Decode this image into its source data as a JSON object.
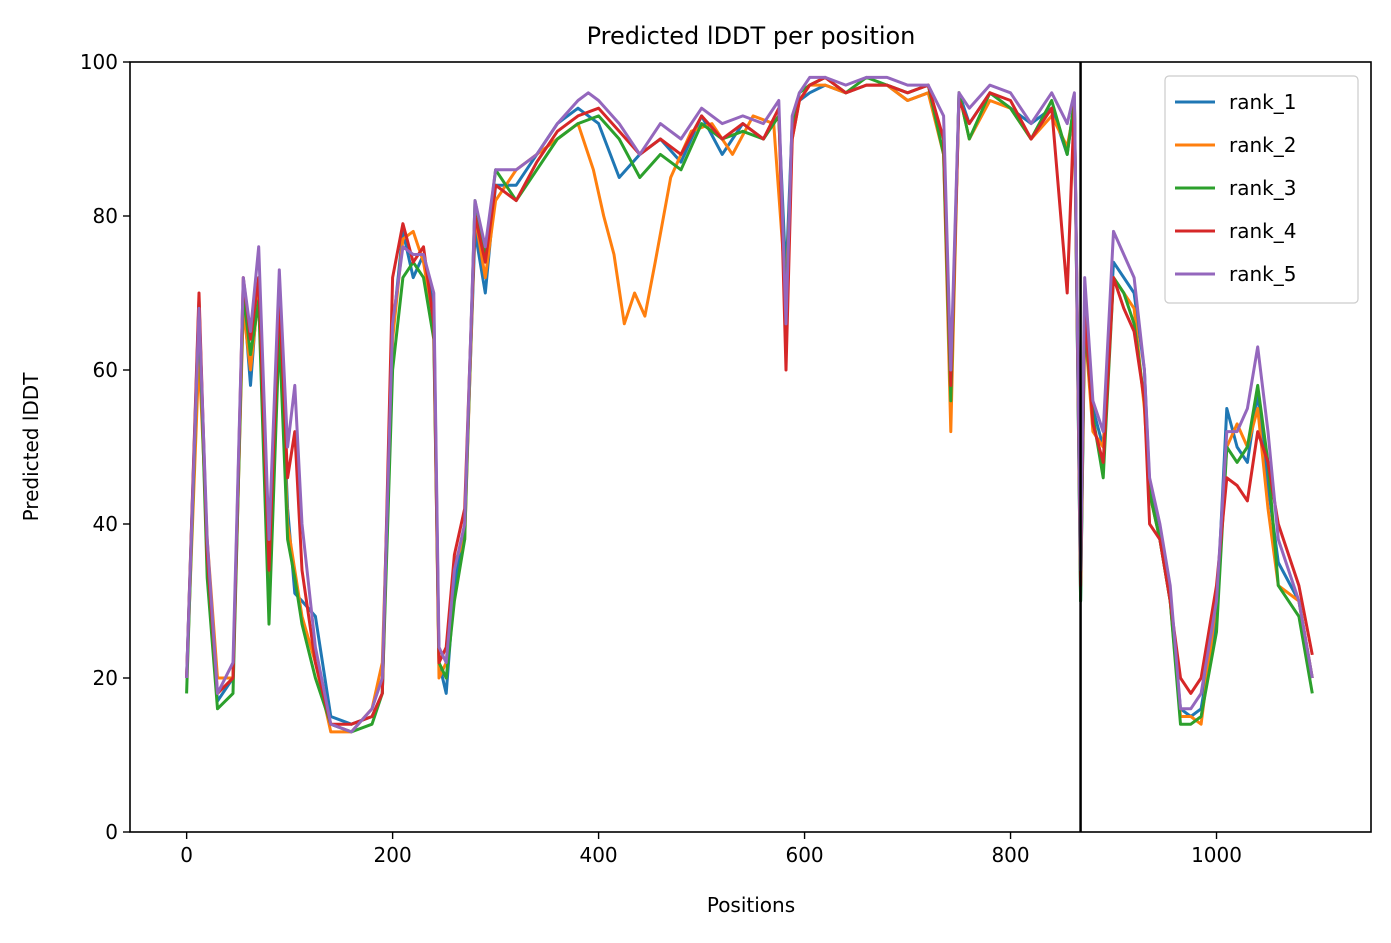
{
  "chart_data": {
    "type": "line",
    "title": "Predicted lDDT per position",
    "xlabel": "Positions",
    "ylabel": "Predicted lDDT",
    "xlim": [
      -55,
      1150
    ],
    "ylim": [
      0,
      100
    ],
    "xticks": [
      0,
      200,
      400,
      600,
      800,
      1000
    ],
    "yticks": [
      0,
      20,
      40,
      60,
      80,
      100
    ],
    "grid": false,
    "legend_position": "top-right",
    "vline": 868,
    "series": [
      {
        "name": "rank_1",
        "color": "#1f77b4",
        "x": [
          0,
          12,
          20,
          30,
          45,
          55,
          62,
          70,
          80,
          90,
          98,
          105,
          112,
          125,
          140,
          160,
          180,
          190,
          200,
          210,
          220,
          230,
          240,
          245,
          252,
          260,
          270,
          280,
          290,
          300,
          320,
          340,
          360,
          380,
          400,
          420,
          440,
          460,
          480,
          500,
          520,
          540,
          560,
          575,
          582,
          588,
          595,
          605,
          620,
          640,
          660,
          680,
          700,
          720,
          735,
          742,
          750,
          760,
          780,
          800,
          820,
          840,
          855,
          862,
          868,
          872,
          880,
          890,
          900,
          910,
          920,
          930,
          935,
          945,
          955,
          965,
          975,
          985,
          1000,
          1010,
          1020,
          1030,
          1040,
          1050,
          1060,
          1080,
          1093
        ],
        "y": [
          20,
          69,
          35,
          17,
          20,
          70,
          58,
          72,
          35,
          68,
          42,
          31,
          30,
          28,
          15,
          14,
          15,
          18,
          65,
          78,
          72,
          75,
          68,
          22,
          18,
          32,
          40,
          78,
          70,
          84,
          84,
          88,
          92,
          94,
          92,
          85,
          88,
          90,
          87,
          93,
          88,
          92,
          90,
          93,
          72,
          92,
          95,
          96,
          97,
          96,
          97,
          97,
          95,
          96,
          90,
          55,
          96,
          92,
          96,
          94,
          92,
          94,
          88,
          95,
          30,
          68,
          55,
          50,
          74,
          72,
          70,
          60,
          45,
          38,
          30,
          16,
          15,
          16,
          28,
          55,
          50,
          48,
          57,
          45,
          35,
          30,
          20
        ]
      },
      {
        "name": "rank_2",
        "color": "#ff7f0e",
        "x": [
          0,
          12,
          20,
          30,
          45,
          55,
          62,
          70,
          80,
          90,
          98,
          105,
          112,
          125,
          140,
          160,
          180,
          190,
          200,
          210,
          220,
          230,
          240,
          245,
          252,
          260,
          270,
          280,
          290,
          300,
          320,
          340,
          360,
          380,
          395,
          405,
          415,
          425,
          435,
          445,
          455,
          470,
          490,
          510,
          530,
          550,
          570,
          582,
          588,
          595,
          605,
          620,
          640,
          660,
          680,
          700,
          720,
          735,
          742,
          750,
          760,
          780,
          800,
          820,
          840,
          855,
          862,
          868,
          872,
          880,
          890,
          900,
          910,
          920,
          930,
          935,
          945,
          955,
          965,
          975,
          985,
          1000,
          1010,
          1020,
          1030,
          1040,
          1050,
          1060,
          1080,
          1093
        ],
        "y": [
          20,
          62,
          38,
          20,
          20,
          68,
          60,
          70,
          32,
          66,
          40,
          34,
          28,
          22,
          13,
          13,
          16,
          22,
          64,
          77,
          78,
          74,
          66,
          20,
          22,
          35,
          38,
          80,
          72,
          82,
          86,
          88,
          90,
          92,
          86,
          80,
          75,
          66,
          70,
          67,
          74,
          85,
          91,
          92,
          88,
          93,
          92,
          70,
          90,
          95,
          97,
          97,
          96,
          97,
          97,
          95,
          96,
          88,
          52,
          96,
          90,
          95,
          94,
          90,
          93,
          89,
          94,
          35,
          66,
          52,
          50,
          72,
          70,
          68,
          55,
          44,
          38,
          30,
          15,
          15,
          14,
          30,
          50,
          53,
          50,
          55,
          42,
          32,
          30,
          20
        ]
      },
      {
        "name": "rank_3",
        "color": "#2ca02c",
        "x": [
          0,
          12,
          20,
          30,
          45,
          55,
          62,
          70,
          80,
          90,
          98,
          105,
          112,
          125,
          140,
          160,
          180,
          190,
          200,
          210,
          220,
          230,
          240,
          245,
          252,
          260,
          270,
          280,
          290,
          300,
          320,
          340,
          360,
          380,
          400,
          420,
          440,
          460,
          480,
          500,
          520,
          540,
          560,
          575,
          582,
          588,
          595,
          605,
          620,
          640,
          660,
          680,
          700,
          720,
          735,
          742,
          750,
          760,
          780,
          800,
          820,
          840,
          855,
          862,
          868,
          872,
          880,
          890,
          900,
          910,
          920,
          930,
          935,
          945,
          955,
          965,
          975,
          985,
          1000,
          1010,
          1020,
          1030,
          1040,
          1050,
          1060,
          1080,
          1093
        ],
        "y": [
          18,
          68,
          33,
          16,
          18,
          70,
          62,
          69,
          27,
          65,
          38,
          33,
          27,
          20,
          14,
          13,
          14,
          18,
          60,
          72,
          74,
          72,
          64,
          22,
          20,
          30,
          38,
          82,
          75,
          86,
          82,
          86,
          90,
          92,
          93,
          90,
          85,
          88,
          86,
          92,
          90,
          91,
          90,
          93,
          68,
          92,
          96,
          97,
          98,
          96,
          98,
          97,
          96,
          97,
          88,
          56,
          96,
          90,
          96,
          94,
          90,
          95,
          88,
          95,
          30,
          66,
          54,
          46,
          72,
          70,
          66,
          56,
          44,
          38,
          30,
          14,
          14,
          15,
          26,
          50,
          48,
          50,
          58,
          48,
          32,
          28,
          18
        ]
      },
      {
        "name": "rank_4",
        "color": "#d62728",
        "x": [
          0,
          12,
          20,
          30,
          45,
          55,
          62,
          70,
          80,
          90,
          98,
          105,
          112,
          125,
          140,
          160,
          180,
          190,
          200,
          210,
          220,
          230,
          240,
          245,
          252,
          260,
          270,
          280,
          290,
          300,
          320,
          340,
          360,
          380,
          400,
          420,
          440,
          460,
          480,
          500,
          520,
          540,
          560,
          575,
          582,
          588,
          595,
          605,
          620,
          640,
          660,
          680,
          700,
          720,
          735,
          742,
          750,
          760,
          780,
          800,
          820,
          840,
          855,
          862,
          868,
          872,
          880,
          890,
          900,
          910,
          920,
          930,
          935,
          945,
          955,
          965,
          975,
          985,
          1000,
          1010,
          1020,
          1030,
          1040,
          1050,
          1060,
          1080,
          1093
        ],
        "y": [
          20,
          70,
          36,
          18,
          20,
          72,
          64,
          72,
          34,
          70,
          46,
          52,
          34,
          22,
          14,
          14,
          15,
          18,
          72,
          79,
          74,
          76,
          66,
          22,
          24,
          36,
          42,
          80,
          74,
          84,
          82,
          87,
          91,
          93,
          94,
          91,
          88,
          90,
          88,
          93,
          90,
          92,
          90,
          94,
          60,
          90,
          95,
          97,
          98,
          96,
          97,
          97,
          96,
          97,
          90,
          58,
          95,
          92,
          96,
          95,
          90,
          94,
          70,
          95,
          32,
          68,
          53,
          48,
          72,
          68,
          65,
          56,
          40,
          38,
          30,
          20,
          18,
          20,
          32,
          46,
          45,
          43,
          52,
          48,
          40,
          32,
          23
        ]
      },
      {
        "name": "rank_5",
        "color": "#9467bd",
        "x": [
          0,
          12,
          20,
          30,
          45,
          55,
          62,
          70,
          80,
          90,
          98,
          105,
          112,
          125,
          140,
          160,
          180,
          190,
          200,
          210,
          220,
          230,
          240,
          245,
          252,
          260,
          270,
          280,
          290,
          300,
          320,
          340,
          360,
          380,
          390,
          400,
          420,
          440,
          460,
          480,
          500,
          520,
          540,
          560,
          575,
          582,
          588,
          595,
          605,
          620,
          640,
          660,
          680,
          700,
          720,
          735,
          742,
          750,
          760,
          780,
          800,
          820,
          840,
          855,
          862,
          868,
          872,
          880,
          890,
          900,
          910,
          920,
          930,
          935,
          945,
          955,
          965,
          975,
          985,
          1000,
          1010,
          1020,
          1030,
          1040,
          1050,
          1060,
          1080,
          1093
        ],
        "y": [
          20,
          68,
          38,
          18,
          22,
          72,
          65,
          76,
          38,
          73,
          50,
          58,
          40,
          24,
          14,
          13,
          16,
          20,
          66,
          76,
          75,
          75,
          70,
          24,
          22,
          34,
          40,
          82,
          76,
          86,
          86,
          88,
          92,
          95,
          96,
          95,
          92,
          88,
          92,
          90,
          94,
          92,
          93,
          92,
          95,
          66,
          93,
          96,
          98,
          98,
          97,
          98,
          98,
          97,
          97,
          93,
          60,
          96,
          94,
          97,
          96,
          92,
          96,
          92,
          96,
          34,
          72,
          56,
          52,
          78,
          75,
          72,
          60,
          46,
          40,
          32,
          16,
          16,
          18,
          30,
          52,
          52,
          55,
          63,
          52,
          38,
          30,
          20
        ]
      }
    ]
  }
}
